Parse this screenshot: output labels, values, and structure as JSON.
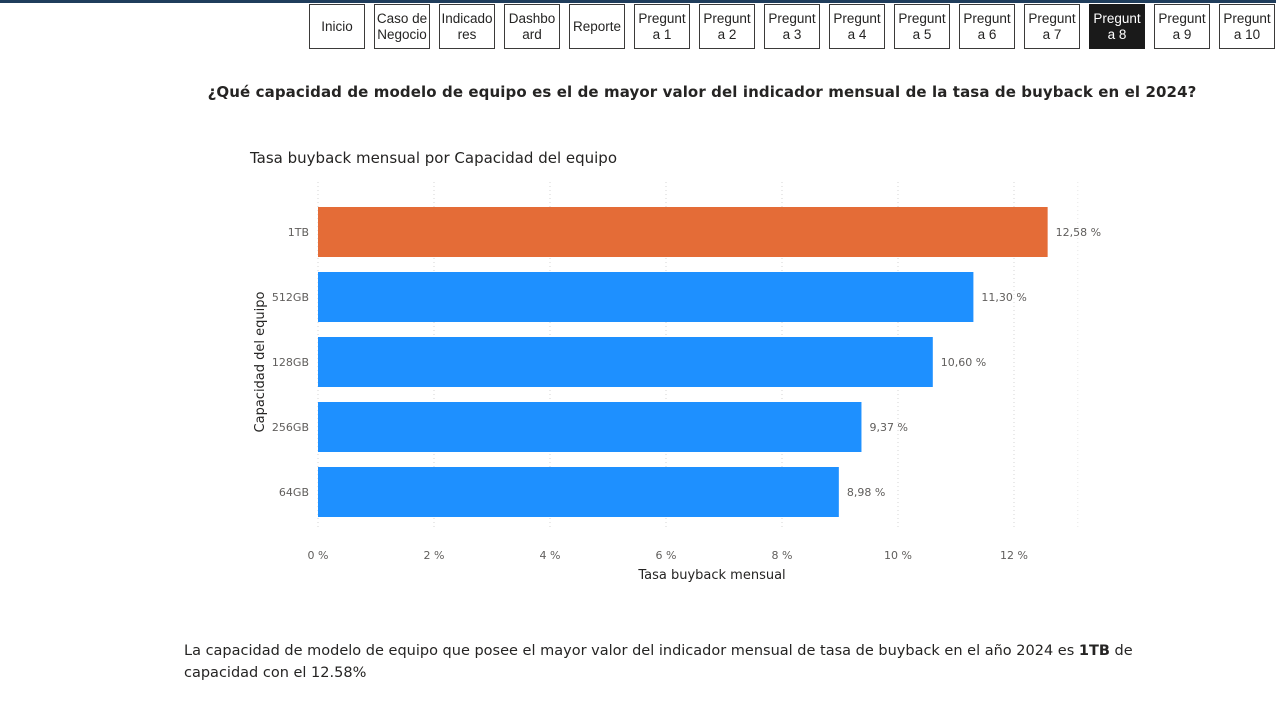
{
  "nav": {
    "buttons": [
      {
        "label": "Inicio",
        "active": false
      },
      {
        "label": "Caso de Negocio",
        "active": false
      },
      {
        "label": "Indicadores",
        "active": false
      },
      {
        "label": "Dashboard",
        "active": false
      },
      {
        "label": "Reporte",
        "active": false
      },
      {
        "label": "Pregunta 1",
        "active": false
      },
      {
        "label": "Pregunta 2",
        "active": false
      },
      {
        "label": "Pregunta 3",
        "active": false
      },
      {
        "label": "Pregunta 4",
        "active": false
      },
      {
        "label": "Pregunta 5",
        "active": false
      },
      {
        "label": "Pregunta 6",
        "active": false
      },
      {
        "label": "Pregunta 7",
        "active": false
      },
      {
        "label": "Pregunta 8",
        "active": true
      },
      {
        "label": "Pregunta 9",
        "active": false
      },
      {
        "label": "Pregunta 10",
        "active": false
      }
    ]
  },
  "question": "¿Qué capacidad de modelo de equipo es el de mayor valor del indicador mensual de la tasa de buyback en el  2024?",
  "chart_data": {
    "type": "bar",
    "orientation": "horizontal",
    "title": "Tasa buyback mensual por Capacidad del equipo",
    "xlabel": "Tasa buyback mensual",
    "ylabel": "Capacidad del equipo",
    "categories": [
      "1TB",
      "512GB",
      "128GB",
      "256GB",
      "64GB"
    ],
    "values": [
      12.58,
      11.3,
      10.6,
      9.37,
      8.98
    ],
    "data_labels": [
      "12,58 %",
      "11,30 %",
      "10,60 %",
      "9,37 %",
      "8,98 %"
    ],
    "x_ticks": [
      "0 %",
      "2 %",
      "4 %",
      "6 %",
      "8 %",
      "10 %",
      "12 %"
    ],
    "xlim": [
      0,
      13.1
    ],
    "grid": "vertical dotted",
    "colors": {
      "highlight": "#E46C37",
      "default": "#1E90FF"
    },
    "highlight_index": 0
  },
  "answer": {
    "text_before": "La capacidad de modelo de equipo que posee el mayor valor del indicador mensual de tasa de buyback en el año 2024 es ",
    "bold": "1TB",
    "text_after": " de capacidad con el 12.58%"
  }
}
